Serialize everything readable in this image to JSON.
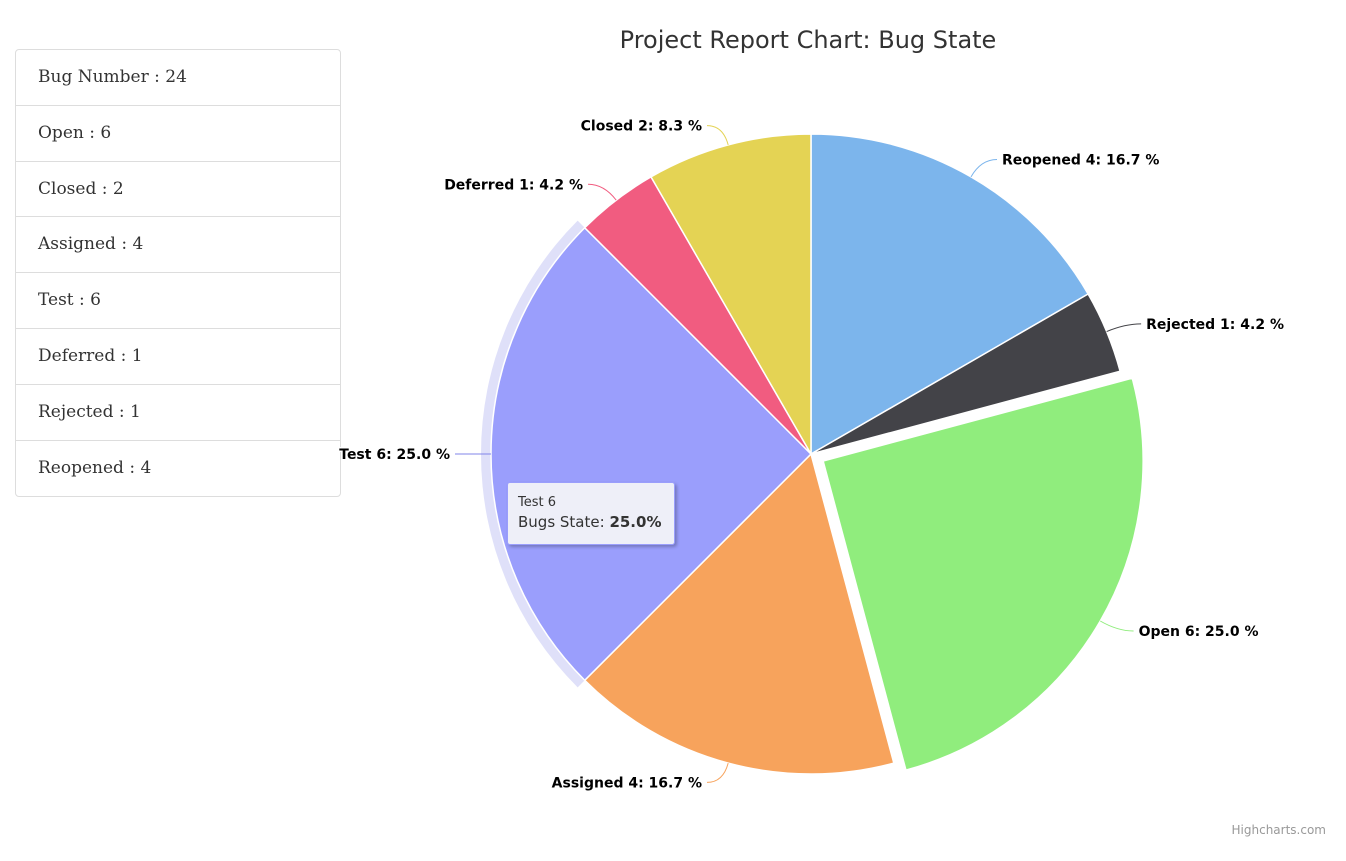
{
  "summary": {
    "items": [
      {
        "label": "Bug Number : 24"
      },
      {
        "label": "Open : 6"
      },
      {
        "label": "Closed : 2"
      },
      {
        "label": "Assigned : 4"
      },
      {
        "label": "Test : 6"
      },
      {
        "label": "Deferred : 1"
      },
      {
        "label": "Rejected : 1"
      },
      {
        "label": "Reopened : 4"
      }
    ]
  },
  "chart_data": {
    "type": "pie",
    "title": "Project Report Chart: Bug State",
    "series_name": "Bugs State",
    "slices": [
      {
        "name": "Reopened",
        "count": 4,
        "percent": 16.7,
        "color": "#7cb5ec",
        "label": "Reopened 4: 16.7 %"
      },
      {
        "name": "Rejected",
        "count": 1,
        "percent": 4.2,
        "color": "#434348",
        "label": "Rejected 1: 4.2 %"
      },
      {
        "name": "Open",
        "count": 6,
        "percent": 25.0,
        "color": "#90ed7d",
        "label": "Open 6: 25.0 %",
        "sliced": true
      },
      {
        "name": "Assigned",
        "count": 4,
        "percent": 16.7,
        "color": "#f7a35c",
        "label": "Assigned 4: 16.7 %"
      },
      {
        "name": "Test",
        "count": 6,
        "percent": 25.0,
        "color": "#8085e9",
        "label": "Test 6: 25.0 %",
        "hover": true
      },
      {
        "name": "Deferred",
        "count": 1,
        "percent": 4.2,
        "color": "#f15c80",
        "label": "Deferred 1: 4.2 %"
      },
      {
        "name": "Closed",
        "count": 2,
        "percent": 8.3,
        "color": "#e4d354",
        "label": "Closed 2: 8.3 %"
      }
    ]
  },
  "tooltip": {
    "header": "Test 6",
    "series_label": "Bugs State: ",
    "value": "25.0%"
  },
  "credits": "Highcharts.com"
}
